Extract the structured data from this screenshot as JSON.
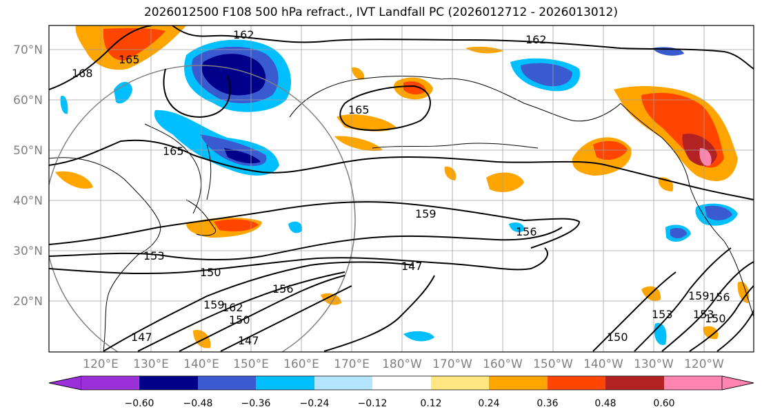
{
  "title": "2026012500 F108 500 hPa refract., IVT Landfall PC (2026012712 - 2026013012)",
  "lat_labels": [
    "70°N",
    "60°N",
    "50°N",
    "40°N",
    "30°N",
    "20°N"
  ],
  "lon_labels": [
    "120°E",
    "130°E",
    "140°E",
    "150°E",
    "160°E",
    "170°E",
    "180°W",
    "170°W",
    "160°W",
    "150°W",
    "140°W",
    "130°W",
    "120°W"
  ],
  "contour_labels": [
    "162",
    "162",
    "165",
    "168",
    "165",
    "165",
    "159",
    "156",
    "153",
    "150",
    "147",
    "159",
    "162",
    "150",
    "156",
    "147",
    "147",
    "153",
    "159",
    "150",
    "153",
    "156",
    "150"
  ],
  "colorbar": {
    "ticks": [
      "−0.60",
      "−0.48",
      "−0.36",
      "−0.24",
      "−0.12",
      "0.12",
      "0.24",
      "0.36",
      "0.48",
      "0.60"
    ],
    "colors": [
      "#9b30d8",
      "#00008b",
      "#3a5bd0",
      "#00bfff",
      "#b3e5ff",
      "#ffffff",
      "#ffe680",
      "#ffa500",
      "#ff4500",
      "#b22222",
      "#ff85b0"
    ]
  }
}
